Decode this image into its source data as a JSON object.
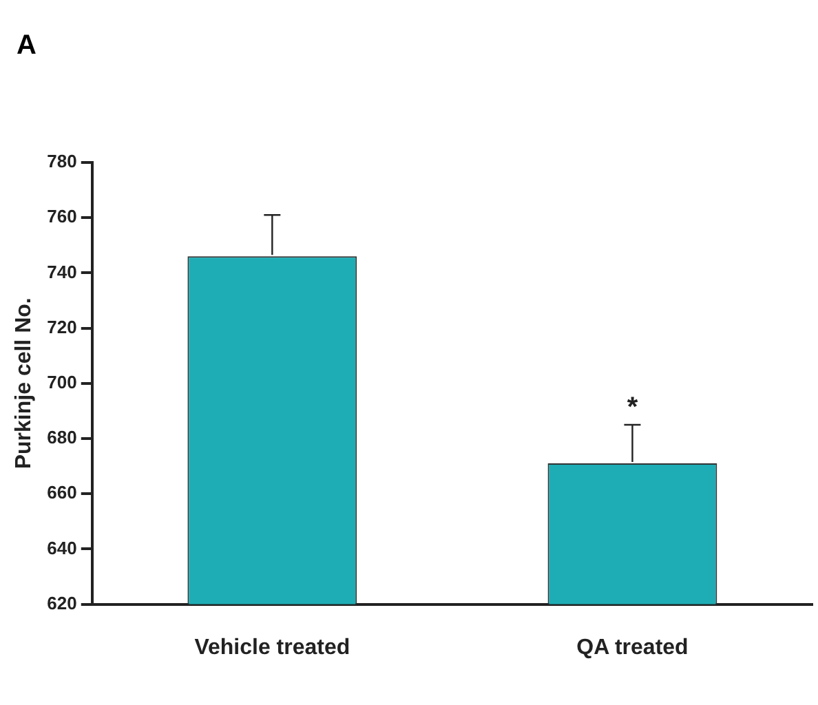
{
  "chart_data": {
    "type": "bar",
    "title": "A",
    "ylabel": "Purkinje cell No.",
    "categories": [
      "Vehicle treated",
      "QA treated"
    ],
    "values": [
      746,
      671
    ],
    "errors": [
      15,
      14
    ],
    "color": "#1eadb5",
    "ylim": [
      620,
      780
    ],
    "yticks": [
      620,
      640,
      660,
      680,
      700,
      720,
      740,
      760,
      780
    ],
    "grid": false,
    "legend": false,
    "annotations": [
      {
        "text": "*",
        "x": "QA treated",
        "y": 685
      }
    ]
  }
}
